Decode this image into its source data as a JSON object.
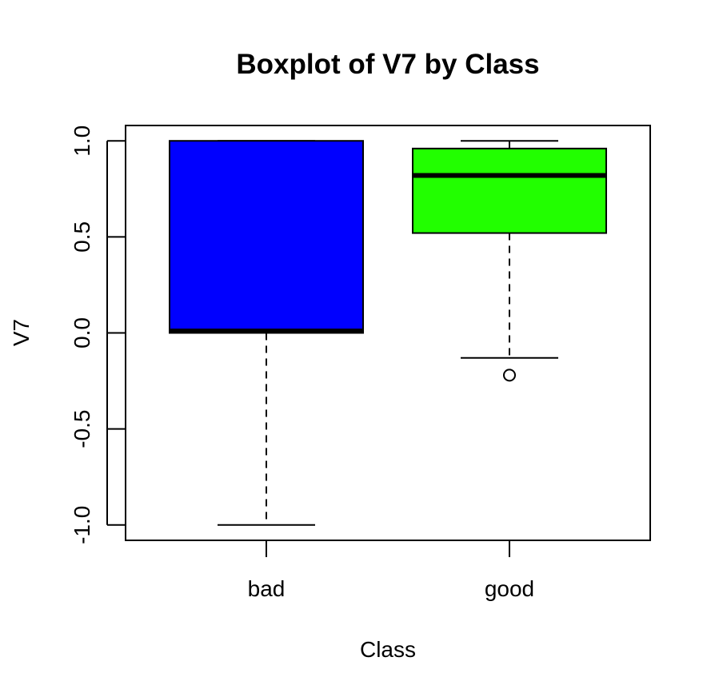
{
  "chart_data": {
    "type": "boxplot",
    "title": "Boxplot of V7 by Class",
    "xlabel": "Class",
    "ylabel": "V7",
    "ylim": [
      -1.08,
      1.08
    ],
    "yticks": [
      -1.0,
      -0.5,
      0.0,
      0.5,
      1.0
    ],
    "ytick_labels": [
      "-1.0",
      "-0.5",
      "0.0",
      "0.5",
      "1.0"
    ],
    "categories": [
      "bad",
      "good"
    ],
    "boxes": [
      {
        "category": "bad",
        "color": "#0000ff",
        "whisker_low": -1.0,
        "q1": 0.0,
        "median": 0.01,
        "q3": 1.0,
        "whisker_high": 1.0,
        "outliers": []
      },
      {
        "category": "good",
        "color": "#22ff00",
        "whisker_low": -0.13,
        "q1": 0.52,
        "median": 0.82,
        "q3": 0.96,
        "whisker_high": 1.0,
        "outliers": [
          -0.22
        ]
      }
    ],
    "grid": false,
    "legend": "none"
  }
}
